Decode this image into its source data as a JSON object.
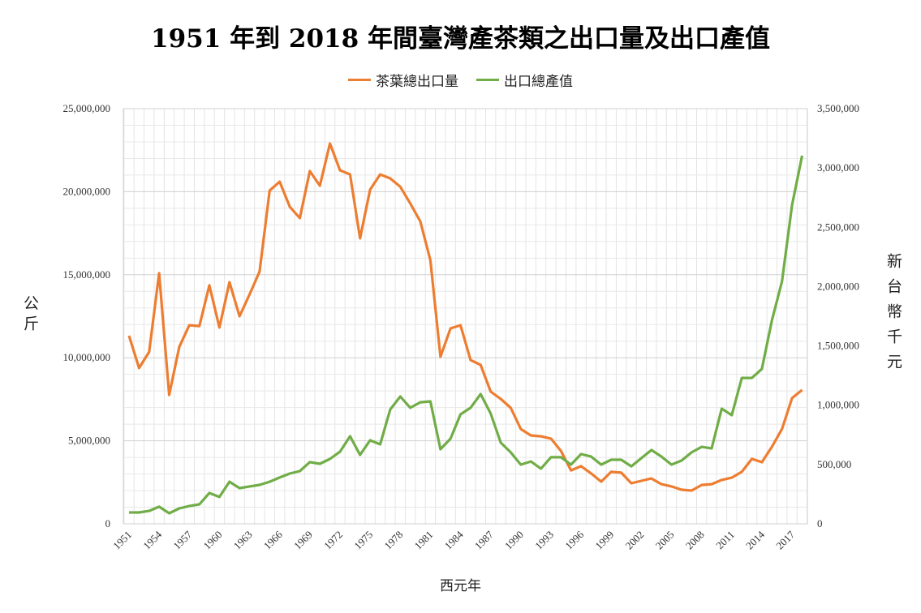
{
  "chart_data": {
    "type": "line",
    "title": "1951 年到 2018 年間臺灣產茶類之出口量及出口產值",
    "xlabel": "西元年",
    "ylabel_left": "公斤",
    "ylabel_right": "新台幣千元",
    "legend_position": "top",
    "grid": true,
    "x": [
      1951,
      1952,
      1953,
      1954,
      1955,
      1956,
      1957,
      1958,
      1959,
      1960,
      1961,
      1962,
      1963,
      1964,
      1965,
      1966,
      1967,
      1968,
      1969,
      1970,
      1971,
      1972,
      1973,
      1974,
      1975,
      1976,
      1977,
      1978,
      1979,
      1980,
      1981,
      1982,
      1983,
      1984,
      1985,
      1986,
      1987,
      1988,
      1989,
      1990,
      1991,
      1992,
      1993,
      1994,
      1995,
      1996,
      1997,
      1998,
      1999,
      2000,
      2001,
      2002,
      2003,
      2004,
      2005,
      2006,
      2007,
      2008,
      2009,
      2010,
      2011,
      2012,
      2013,
      2014,
      2015,
      2016,
      2017,
      2018
    ],
    "x_tick_labels": [
      "1951",
      "1954",
      "1957",
      "1960",
      "1963",
      "1966",
      "1969",
      "1972",
      "1975",
      "1978",
      "1981",
      "1984",
      "1987",
      "1990",
      "1993",
      "1996",
      "1999",
      "2002",
      "2005",
      "2008",
      "2011",
      "2014",
      "2017"
    ],
    "y_left": {
      "range": [
        0,
        25000000
      ],
      "tick_labels": [
        "0",
        "5,000,000",
        "10,000,000",
        "15,000,000",
        "20,000,000",
        "25,000,000"
      ]
    },
    "y_right": {
      "range": [
        0,
        3500000
      ],
      "tick_labels": [
        "0",
        "500,000",
        "1,000,000",
        "1,500,000",
        "2,000,000",
        "2,500,000",
        "3,000,000",
        "3,500,000"
      ]
    },
    "series": [
      {
        "name": "茶葉總出口量",
        "axis": "left",
        "color": "#ED7D31",
        "values": [
          11330000,
          9380000,
          10350000,
          15090000,
          7760000,
          10650000,
          11960000,
          11910000,
          14360000,
          11820000,
          14550000,
          12500000,
          13820000,
          15190000,
          20070000,
          20600000,
          19090000,
          18410000,
          21240000,
          20360000,
          22900000,
          21290000,
          21040000,
          17190000,
          20120000,
          21040000,
          20800000,
          20300000,
          19290000,
          18210000,
          15870000,
          10060000,
          11770000,
          11960000,
          9860000,
          9570000,
          7960000,
          7520000,
          6980000,
          5710000,
          5320000,
          5270000,
          5130000,
          4390000,
          3220000,
          3470000,
          3030000,
          2540000,
          3130000,
          3080000,
          2440000,
          2590000,
          2730000,
          2390000,
          2250000,
          2050000,
          2000000,
          2340000,
          2390000,
          2640000,
          2780000,
          3130000,
          3910000,
          3710000,
          4640000,
          5710000,
          7570000,
          8060000
        ]
      },
      {
        "name": "出口總產值",
        "axis": "right",
        "color": "#70AD47",
        "values": [
          96000,
          96000,
          109000,
          144000,
          89000,
          130000,
          150000,
          164000,
          260000,
          226000,
          355000,
          301000,
          315000,
          328000,
          355000,
          390000,
          424000,
          444000,
          520000,
          506000,
          547000,
          608000,
          738000,
          581000,
          704000,
          670000,
          964000,
          1073000,
          978000,
          1025000,
          1032000,
          629000,
          718000,
          923000,
          978000,
          1094000,
          930000,
          684000,
          602000,
          499000,
          526000,
          465000,
          561000,
          561000,
          499000,
          588000,
          567000,
          499000,
          540000,
          540000,
          485000,
          554000,
          622000,
          567000,
          499000,
          533000,
          602000,
          649000,
          636000,
          971000,
          916000,
          1230000,
          1230000,
          1306000,
          1716000,
          2044000,
          2687000,
          3104000
        ]
      }
    ]
  }
}
